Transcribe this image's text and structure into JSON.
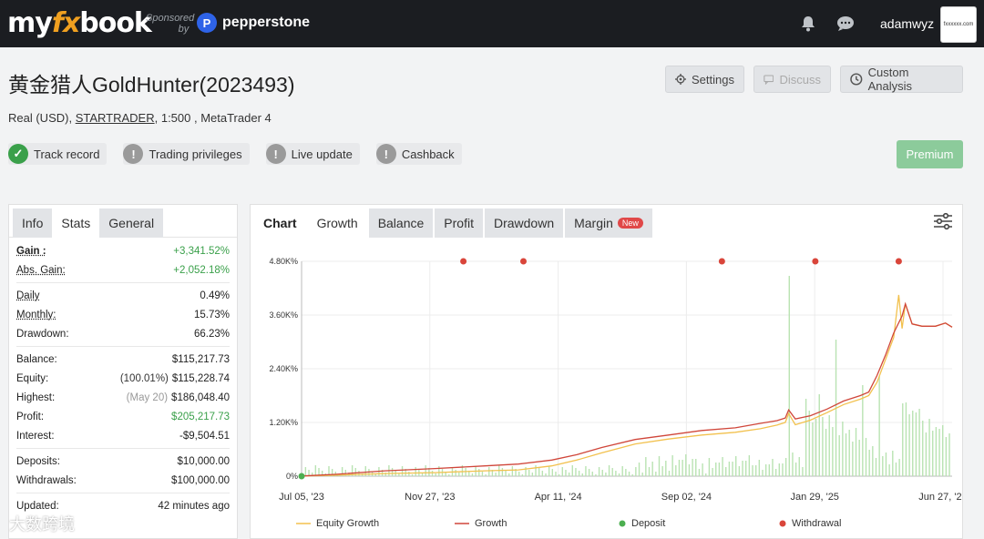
{
  "brand": {
    "logo_my": "my",
    "logo_fx": "fx",
    "logo_book": "book",
    "sponsored_line1": "Sponsored",
    "sponsored_line2": "by",
    "sponsor_name": "pepperstone",
    "sponsor_badge": "P"
  },
  "user": {
    "name": "adamwyz",
    "avatar_text": "fxxxxxx.com"
  },
  "account": {
    "title": "黄金猎人GoldHunter(2023493)",
    "sub_prefix": "Real (USD), ",
    "broker": "STARTRADER",
    "sub_suffix": ", 1:500 , MetaTrader 4"
  },
  "header_buttons": {
    "settings": "Settings",
    "discuss": "Discuss",
    "custom": "Custom Analysis"
  },
  "badges": [
    {
      "label": "Track record",
      "icon": "check-icon",
      "color": "#3aa04a"
    },
    {
      "label": "Trading privileges",
      "icon": "exclamation-icon",
      "color": "#9a9a9a"
    },
    {
      "label": "Live update",
      "icon": "exclamation-icon",
      "color": "#9a9a9a"
    },
    {
      "label": "Cashback",
      "icon": "exclamation-icon",
      "color": "#9a9a9a"
    }
  ],
  "premium": "Premium",
  "left_tabs": {
    "info": "Info",
    "stats": "Stats",
    "general": "General"
  },
  "stats": {
    "gain_label": "Gain :",
    "gain_value": "+3,341.52%",
    "abs_gain_label": "Abs. Gain:",
    "abs_gain_value": "+2,052.18%",
    "daily_label": "Daily",
    "daily_value": "0.49%",
    "monthly_label": "Monthly:",
    "monthly_value": "15.73%",
    "drawdown_label": "Drawdown:",
    "drawdown_value": "66.23%",
    "balance_label": "Balance:",
    "balance_value": "$115,217.73",
    "equity_label": "Equity:",
    "equity_note": "(100.01%)",
    "equity_value": "$115,228.74",
    "highest_label": "Highest:",
    "highest_note": "(May 20)",
    "highest_value": "$186,048.40",
    "profit_label": "Profit:",
    "profit_value": "$205,217.73",
    "interest_label": "Interest:",
    "interest_value": "-$9,504.51",
    "deposits_label": "Deposits:",
    "deposits_value": "$10,000.00",
    "withdrawals_label": "Withdrawals:",
    "withdrawals_value": "$100,000.00",
    "updated_label": "Updated:",
    "updated_value": "42 minutes ago"
  },
  "chart_tabs": {
    "chart": "Chart",
    "growth": "Growth",
    "balance": "Balance",
    "profit": "Profit",
    "drawdown": "Drawdown",
    "margin": "Margin",
    "new": "New"
  },
  "legend": {
    "equity": "Equity Growth",
    "growth": "Growth",
    "deposit": "Deposit",
    "withdrawal": "Withdrawal"
  },
  "watermark": "大数跨境",
  "colors": {
    "growth": "#d0463a",
    "equity": "#f2c14e",
    "deposit": "#4caf50",
    "withdrawal": "#d9453a",
    "volume": "#b9e3b2",
    "green": "#3aa04a"
  },
  "chart_data": {
    "type": "line",
    "x_ticks": [
      "Jul 05, '23",
      "Nov 27, '23",
      "Apr 11, '24",
      "Sep 02, '24",
      "Jan 29, '25",
      "Jun 27, '25"
    ],
    "y_ticks": [
      "0%",
      "1.20K%",
      "2.40K%",
      "3.60K%",
      "4.80K%"
    ],
    "ylim": [
      0,
      4800
    ],
    "series": [
      {
        "name": "Growth",
        "points": [
          [
            0,
            5
          ],
          [
            20,
            40
          ],
          [
            50,
            120
          ],
          [
            80,
            170
          ],
          [
            110,
            230
          ],
          [
            130,
            270
          ],
          [
            150,
            360
          ],
          [
            165,
            480
          ],
          [
            180,
            640
          ],
          [
            200,
            820
          ],
          [
            220,
            920
          ],
          [
            240,
            1020
          ],
          [
            260,
            1080
          ],
          [
            275,
            1180
          ],
          [
            285,
            1240
          ],
          [
            290,
            1300
          ],
          [
            292,
            1480
          ],
          [
            296,
            1280
          ],
          [
            305,
            1350
          ],
          [
            315,
            1500
          ],
          [
            325,
            1680
          ],
          [
            335,
            1800
          ],
          [
            340,
            1880
          ],
          [
            345,
            2250
          ],
          [
            350,
            2700
          ],
          [
            355,
            3200
          ],
          [
            360,
            3580
          ],
          [
            362,
            3850
          ],
          [
            366,
            3400
          ],
          [
            372,
            3350
          ],
          [
            380,
            3350
          ],
          [
            386,
            3420
          ],
          [
            390,
            3330
          ]
        ]
      },
      {
        "name": "Equity Growth",
        "points": [
          [
            0,
            2
          ],
          [
            20,
            20
          ],
          [
            50,
            60
          ],
          [
            80,
            80
          ],
          [
            110,
            120
          ],
          [
            130,
            140
          ],
          [
            150,
            230
          ],
          [
            165,
            360
          ],
          [
            180,
            520
          ],
          [
            200,
            720
          ],
          [
            220,
            830
          ],
          [
            240,
            920
          ],
          [
            260,
            980
          ],
          [
            275,
            1060
          ],
          [
            285,
            1140
          ],
          [
            290,
            1200
          ],
          [
            292,
            1400
          ],
          [
            296,
            1150
          ],
          [
            305,
            1250
          ],
          [
            315,
            1420
          ],
          [
            325,
            1600
          ],
          [
            335,
            1720
          ],
          [
            340,
            1800
          ],
          [
            345,
            2100
          ],
          [
            350,
            2600
          ],
          [
            355,
            3100
          ],
          [
            358,
            4050
          ],
          [
            360,
            3300
          ],
          [
            362,
            3850
          ],
          [
            366,
            3400
          ],
          [
            372,
            3350
          ],
          [
            380,
            3350
          ],
          [
            386,
            3420
          ],
          [
            390,
            3330
          ]
        ]
      }
    ],
    "x_range": [
      0,
      390
    ],
    "withdrawal_points": [
      [
        97,
        4800
      ],
      [
        133,
        4800
      ],
      [
        252,
        4800
      ],
      [
        308,
        4800
      ],
      [
        358,
        4800
      ]
    ],
    "deposit_points": [
      [
        0,
        0
      ]
    ]
  }
}
